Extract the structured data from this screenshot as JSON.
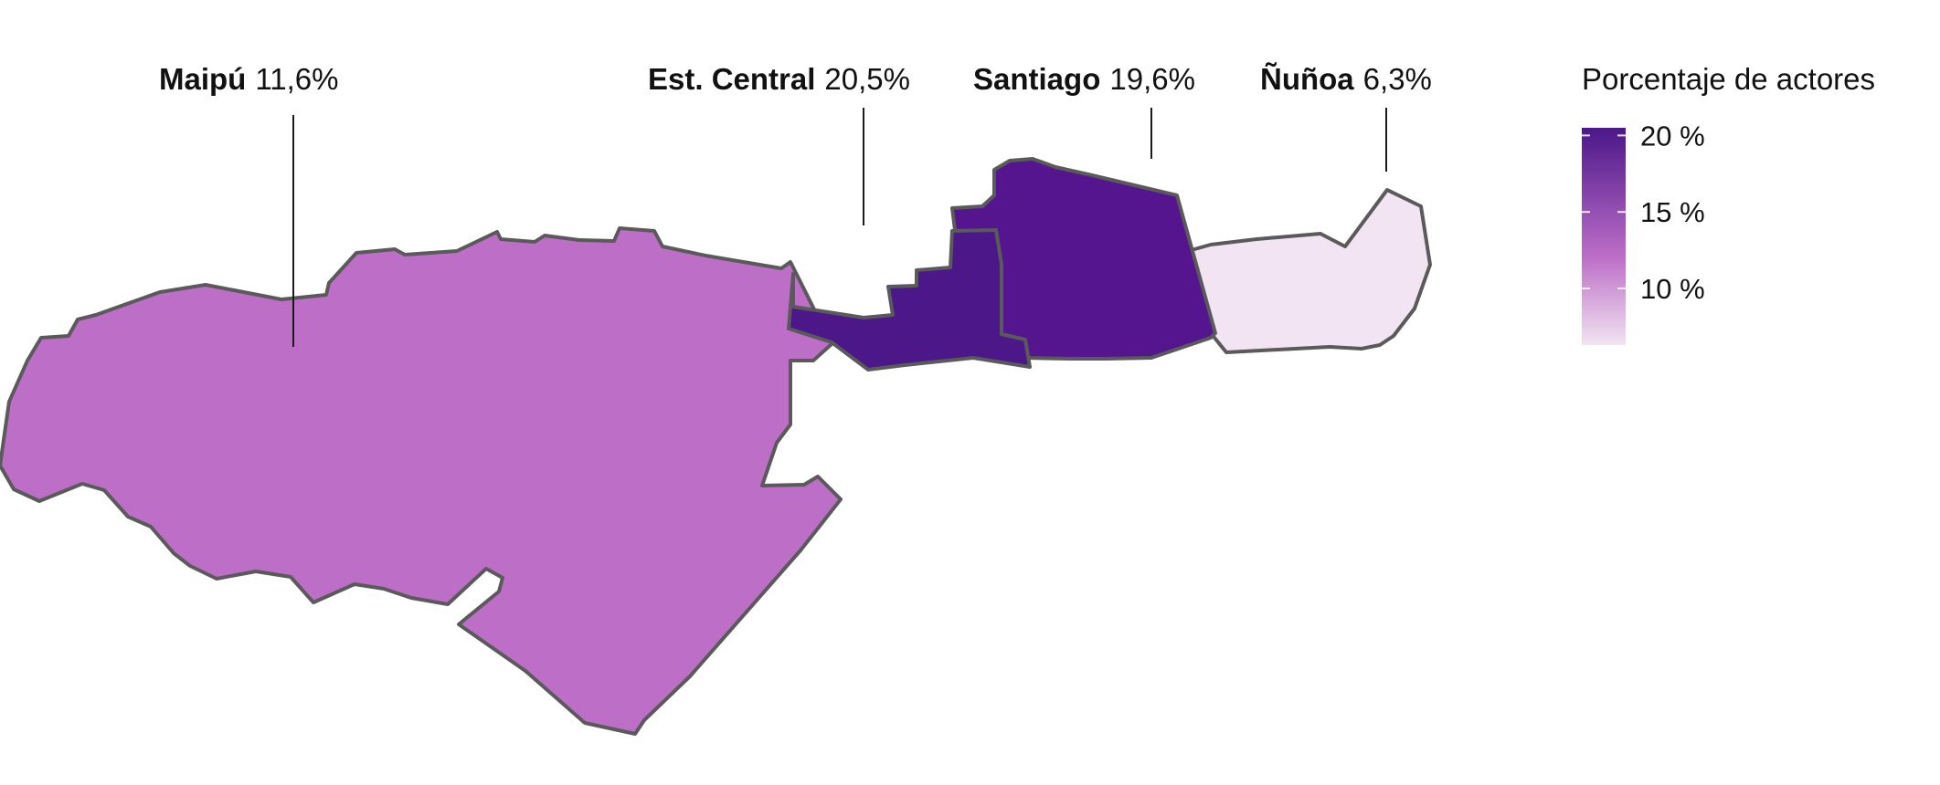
{
  "legend": {
    "title": "Porcentaje de actores",
    "ticks": [
      {
        "label": "20 %",
        "value": 20
      },
      {
        "label": "15 %",
        "value": 15
      },
      {
        "label": "10 %",
        "value": 10
      }
    ],
    "range": [
      6.3,
      20.5
    ],
    "color_low": "#f2e4f2",
    "color_mid": "#bd6fc8",
    "color_high": "#4b1789"
  },
  "regions": [
    {
      "id": "maipu",
      "name": "Maipú",
      "value_label": "11,6%",
      "value": 11.6,
      "fill": "#bd6fc8"
    },
    {
      "id": "est-central",
      "name": "Est. Central",
      "value_label": "20,5%",
      "value": 20.5,
      "fill": "#4b1789"
    },
    {
      "id": "santiago",
      "name": "Santiago",
      "value_label": "19,6%",
      "value": 19.6,
      "fill": "#55158f"
    },
    {
      "id": "nunoa",
      "name": "Ñuñoa",
      "value_label": "6,3%",
      "value": 6.3,
      "fill": "#f2e4f2"
    }
  ]
}
